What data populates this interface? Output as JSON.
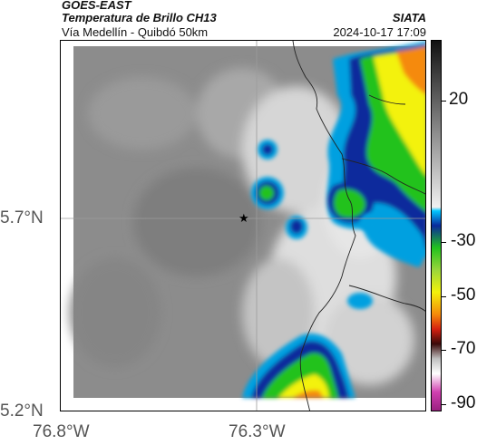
{
  "header": {
    "satellite": "GOES-EAST",
    "product": "Temperatura de Brillo CH13",
    "region": "Vía Medellín - Quibdó 50km",
    "brand": "SIATA",
    "datetime": "2024-10-17 17:09"
  },
  "axes": {
    "y_ticks": [
      "5.7°N",
      "5.2°N"
    ],
    "x_ticks": [
      "76.8°W",
      "76.3°W"
    ]
  },
  "colorbar": {
    "ticks": [
      "20",
      "-30",
      "-50",
      "-70",
      "-90"
    ]
  },
  "colors": {
    "background_gray": "#8a8a8a",
    "cold_blue": "#0a2a9c",
    "green": "#22c21e",
    "yellow": "#f3f20a",
    "orange": "#f58a0a"
  },
  "marker": {
    "icon": "star-icon"
  }
}
